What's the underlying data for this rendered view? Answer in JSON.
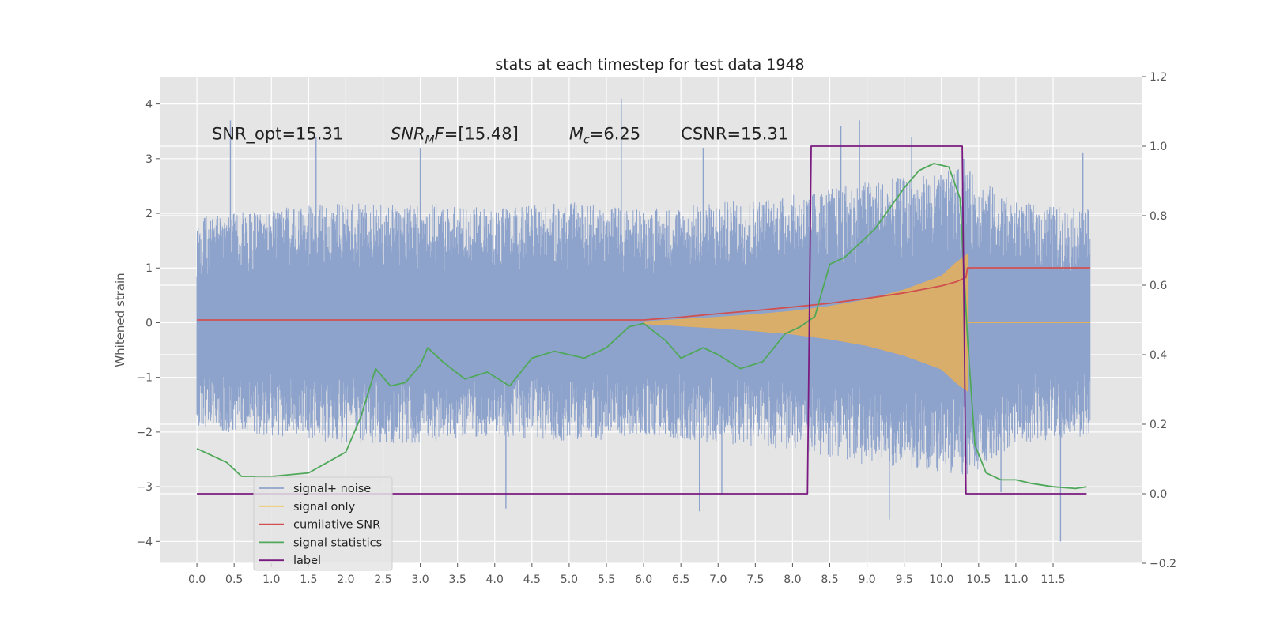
{
  "chart_data": {
    "type": "line",
    "title": "stats at each timestep for test data 1948",
    "ylabel": "Whitened strain",
    "y2label": "",
    "xlim": [
      -0.5,
      12.7
    ],
    "ylim": [
      -4.4,
      4.5
    ],
    "y2lim": [
      -0.2,
      1.2
    ],
    "x_ticks": [
      "0.0",
      "0.5",
      "1.0",
      "1.5",
      "2.0",
      "2.5",
      "3.0",
      "3.5",
      "4.0",
      "4.5",
      "5.0",
      "5.5",
      "6.0",
      "6.5",
      "7.0",
      "7.5",
      "8.0",
      "8.5",
      "9.0",
      "9.5",
      "10.0",
      "10.5",
      "11.0",
      "11.5"
    ],
    "y_ticks": [
      "4",
      "3",
      "2",
      "1",
      "0",
      "−1",
      "−2",
      "−3",
      "−4"
    ],
    "y2_ticks": [
      "1.2",
      "1.0",
      "0.8",
      "0.6",
      "0.4",
      "0.2",
      "0.0",
      "−0.2"
    ],
    "grid": true,
    "legend_placement": "lower-left",
    "annotations": [
      {
        "id": "snr-opt",
        "text": "SNR_opt=15.31",
        "x": 0.2,
        "y": 3.35
      },
      {
        "id": "snr-mf",
        "text": "SNR_MF=[15.48]",
        "x": 2.6,
        "y": 3.35
      },
      {
        "id": "mc",
        "text": "M_c=6.25",
        "x": 5.0,
        "y": 3.35
      },
      {
        "id": "csnr",
        "text": "CSNR=15.31",
        "x": 6.5,
        "y": 3.35
      }
    ],
    "series": [
      {
        "name": "signal+ noise",
        "color": "#8ea3cc",
        "axis": "left",
        "kind": "noise-band",
        "x": [
          0.0,
          1.0,
          2.0,
          3.0,
          4.0,
          5.0,
          6.0,
          7.0,
          8.0,
          9.0,
          10.0,
          10.3,
          11.0,
          12.0
        ],
        "upper": [
          1.5,
          1.6,
          1.7,
          1.7,
          1.6,
          1.7,
          1.6,
          1.7,
          1.8,
          2.0,
          2.1,
          2.2,
          1.7,
          1.6
        ],
        "lower": [
          -1.5,
          -1.6,
          -1.7,
          -1.7,
          -1.6,
          -1.7,
          -1.6,
          -1.7,
          -1.8,
          -2.0,
          -2.1,
          -2.2,
          -1.7,
          -1.6
        ],
        "spikes_up": [
          [
            0.45,
            3.7
          ],
          [
            1.6,
            3.4
          ],
          [
            5.7,
            4.1
          ],
          [
            8.65,
            3.6
          ],
          [
            8.9,
            3.7
          ],
          [
            9.6,
            3.4
          ],
          [
            10.3,
            3.0
          ],
          [
            11.9,
            3.1
          ],
          [
            3.0,
            3.2
          ],
          [
            6.8,
            3.2
          ]
        ],
        "spikes_down": [
          [
            4.15,
            -3.4
          ],
          [
            6.75,
            -3.45
          ],
          [
            9.3,
            -3.6
          ],
          [
            11.6,
            -4.0
          ],
          [
            7.05,
            -3.15
          ],
          [
            10.8,
            -3.1
          ]
        ]
      },
      {
        "name": "signal only",
        "color": "#e4ae5c",
        "axis": "left",
        "kind": "envelope",
        "x": [
          6.0,
          6.5,
          7.0,
          7.5,
          8.0,
          8.5,
          9.0,
          9.5,
          10.0,
          10.2,
          10.35
        ],
        "amp": [
          0.02,
          0.06,
          0.1,
          0.15,
          0.21,
          0.3,
          0.42,
          0.6,
          0.85,
          1.1,
          1.25
        ]
      },
      {
        "name": "cumilative SNR",
        "color": "#d05050",
        "axis": "right",
        "x": [
          0.0,
          6.0,
          6.5,
          7.0,
          7.5,
          8.0,
          8.5,
          9.0,
          9.5,
          10.0,
          10.2,
          10.33,
          10.35,
          12.0
        ],
        "y": [
          0.5,
          0.5,
          0.508,
          0.518,
          0.527,
          0.537,
          0.548,
          0.562,
          0.578,
          0.598,
          0.61,
          0.622,
          0.65,
          0.65
        ]
      },
      {
        "name": "signal statistics",
        "color": "#4fa85a",
        "axis": "right",
        "x": [
          0.0,
          0.2,
          0.4,
          0.6,
          1.0,
          1.5,
          2.0,
          2.2,
          2.4,
          2.6,
          2.8,
          3.0,
          3.1,
          3.3,
          3.6,
          3.9,
          4.2,
          4.5,
          4.8,
          5.2,
          5.5,
          5.8,
          6.0,
          6.3,
          6.5,
          6.8,
          7.0,
          7.3,
          7.6,
          7.9,
          8.1,
          8.3,
          8.5,
          8.7,
          8.9,
          9.1,
          9.3,
          9.5,
          9.7,
          9.9,
          10.1,
          10.25,
          10.35,
          10.45,
          10.6,
          10.8,
          11.0,
          11.2,
          11.5,
          11.8,
          11.95
        ],
        "y": [
          0.13,
          0.11,
          0.09,
          0.05,
          0.05,
          0.06,
          0.12,
          0.22,
          0.36,
          0.31,
          0.32,
          0.37,
          0.42,
          0.38,
          0.33,
          0.35,
          0.31,
          0.39,
          0.41,
          0.39,
          0.42,
          0.48,
          0.49,
          0.44,
          0.39,
          0.42,
          0.4,
          0.36,
          0.38,
          0.46,
          0.48,
          0.51,
          0.66,
          0.68,
          0.72,
          0.76,
          0.82,
          0.88,
          0.93,
          0.95,
          0.94,
          0.85,
          0.45,
          0.14,
          0.06,
          0.04,
          0.04,
          0.03,
          0.02,
          0.015,
          0.02
        ]
      },
      {
        "name": "label",
        "color": "#7a1a80",
        "axis": "right",
        "x": [
          0.0,
          8.2,
          8.25,
          10.28,
          10.33,
          11.95
        ],
        "y": [
          0.0,
          0.0,
          1.0,
          1.0,
          0.0,
          0.0
        ]
      }
    ]
  }
}
